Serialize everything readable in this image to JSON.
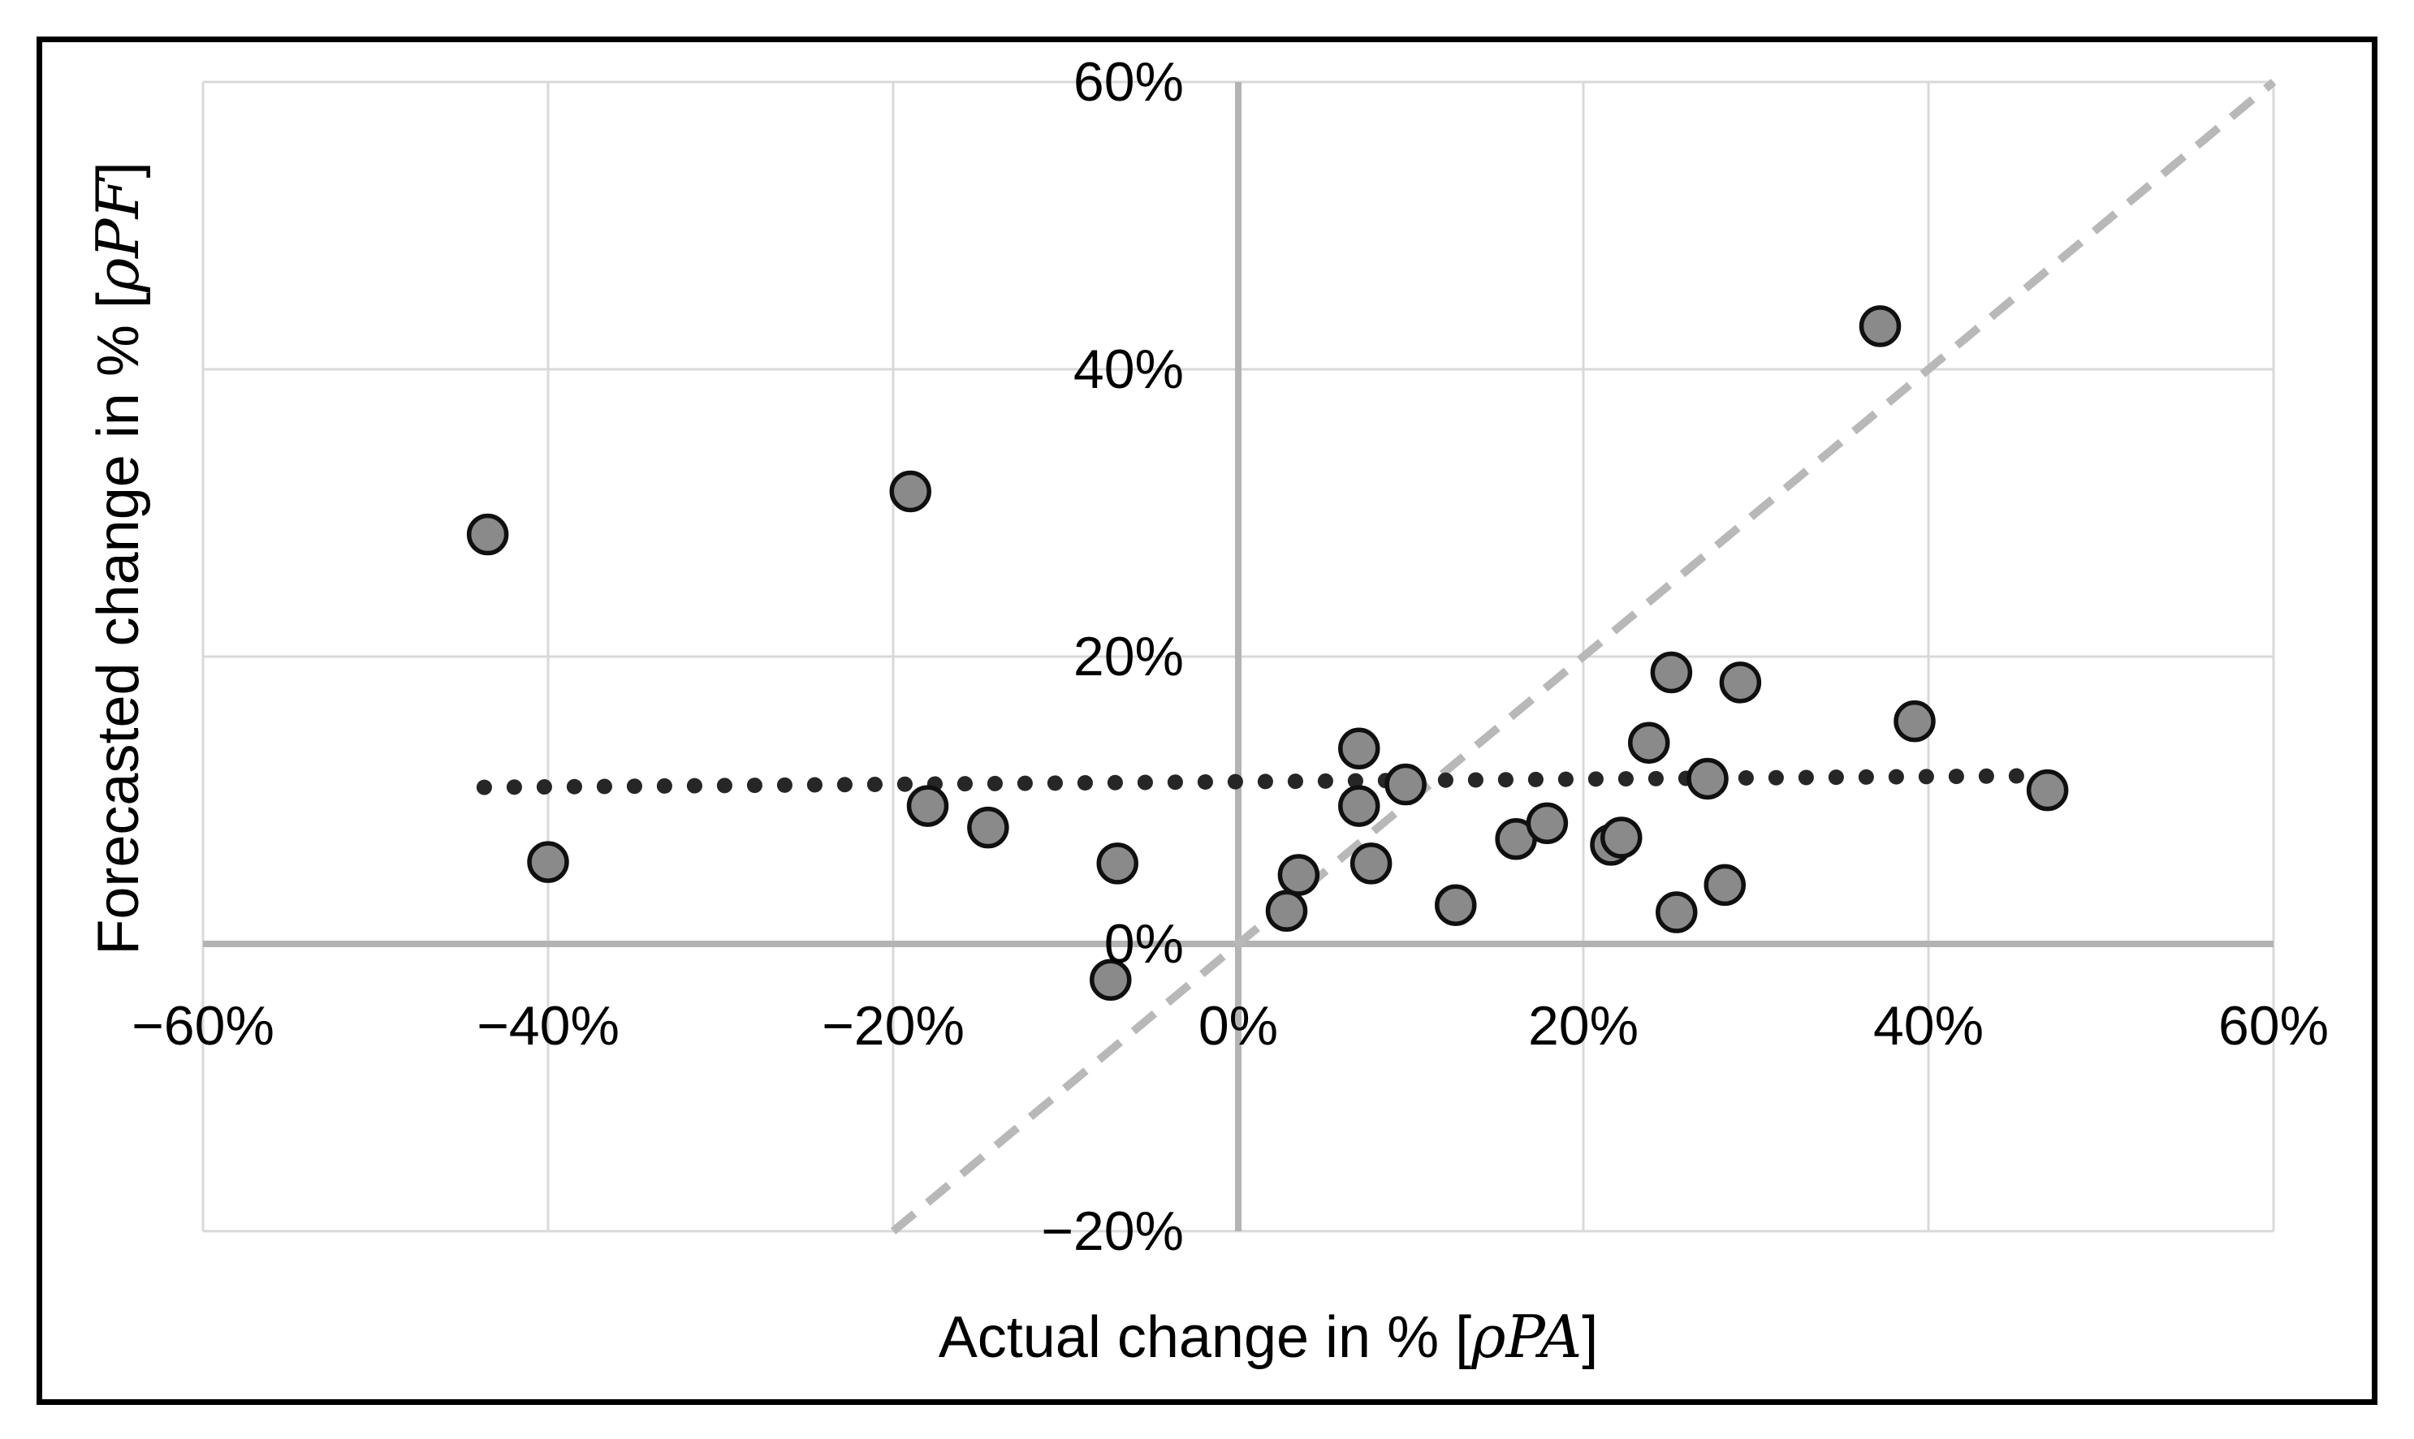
{
  "chart_data": {
    "type": "scatter",
    "title": "",
    "xlabel": {
      "prefix": "Actual change in % [",
      "math": "ρPA",
      "suffix": "]"
    },
    "ylabel": {
      "prefix": "Forecasted change in % [",
      "math": "ρPF",
      "suffix": "]"
    },
    "xlim": [
      -60,
      60
    ],
    "ylim": [
      -20,
      60
    ],
    "grid": true,
    "legend_position": "none",
    "x_ticks": [
      {
        "value": -60,
        "label": "−60%"
      },
      {
        "value": -40,
        "label": "−40%"
      },
      {
        "value": -20,
        "label": "−20%"
      },
      {
        "value": 0,
        "label": "0%"
      },
      {
        "value": 20,
        "label": "20%"
      },
      {
        "value": 40,
        "label": "40%"
      },
      {
        "value": 60,
        "label": "60%"
      }
    ],
    "y_ticks": [
      {
        "value": 60,
        "label": "60%"
      },
      {
        "value": 40,
        "label": "40%"
      },
      {
        "value": 20,
        "label": "20%"
      },
      {
        "value": 0,
        "label": "0%"
      },
      {
        "value": -20,
        "label": "−20%"
      }
    ],
    "points": [
      [
        -43.5,
        28.5
      ],
      [
        -19,
        31.5
      ],
      [
        -40,
        5.7
      ],
      [
        -18,
        9.6
      ],
      [
        -14.5,
        8.1
      ],
      [
        -7,
        5.6
      ],
      [
        -7.4,
        -2.5
      ],
      [
        2.8,
        2.3
      ],
      [
        3.5,
        4.8
      ],
      [
        7,
        13.6
      ],
      [
        7,
        9.6
      ],
      [
        9.7,
        11.1
      ],
      [
        7.7,
        5.6
      ],
      [
        12.6,
        2.7
      ],
      [
        16.1,
        7.3
      ],
      [
        17.9,
        8.4
      ],
      [
        21.6,
        6.9
      ],
      [
        22.2,
        7.4
      ],
      [
        23.8,
        14
      ],
      [
        25.4,
        2.2
      ],
      [
        28.2,
        4.1
      ],
      [
        25.1,
        18.9
      ],
      [
        29.1,
        18.2
      ],
      [
        27.2,
        11.5
      ],
      [
        37.2,
        43
      ],
      [
        39.2,
        15.5
      ],
      [
        46.9,
        10.7
      ]
    ],
    "identity_line": {
      "style": "dashed",
      "x1": -20,
      "y1": -20,
      "x2": 60,
      "y2": 60
    },
    "trend_line": {
      "style": "dotted",
      "x1": -43.7,
      "y1": 10.9,
      "x2": 45.8,
      "y2": 11.7
    },
    "colors": {
      "background": "#ffffff",
      "border": "#000000",
      "grid": "#d9d9d9",
      "axis": "#b3b3b3",
      "identity_line": "#b8b8b8",
      "trend_line": "#262626",
      "point_fill": "#8a8a8a",
      "point_stroke": "#101010",
      "text": "#000000"
    }
  }
}
